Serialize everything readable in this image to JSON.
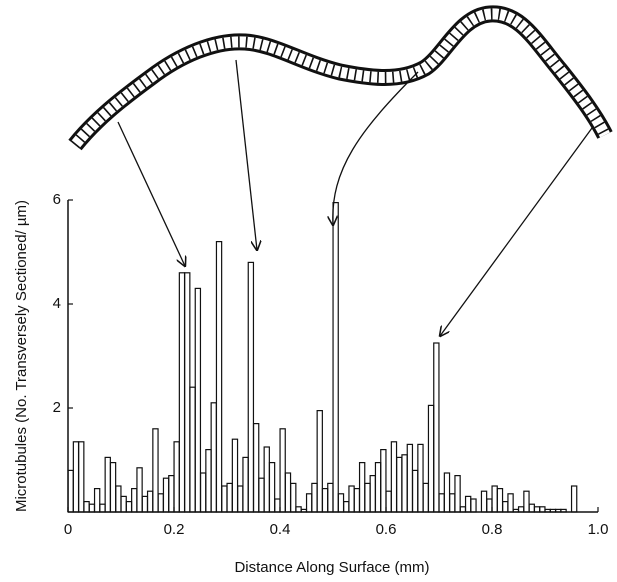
{
  "chart_data": {
    "type": "bar",
    "x_label": "Distance Along Surface (mm)",
    "y_label": "Microtubules (No. Transversely Sectioned/ µm)",
    "x": [
      0.005,
      0.015,
      0.025,
      0.035,
      0.045,
      0.055,
      0.065,
      0.075,
      0.085,
      0.095,
      0.105,
      0.115,
      0.125,
      0.135,
      0.145,
      0.155,
      0.165,
      0.175,
      0.185,
      0.195,
      0.205,
      0.215,
      0.225,
      0.235,
      0.245,
      0.255,
      0.265,
      0.275,
      0.285,
      0.295,
      0.305,
      0.315,
      0.325,
      0.335,
      0.345,
      0.355,
      0.365,
      0.375,
      0.385,
      0.395,
      0.405,
      0.415,
      0.425,
      0.435,
      0.445,
      0.455,
      0.465,
      0.475,
      0.485,
      0.495,
      0.505,
      0.515,
      0.525,
      0.535,
      0.545,
      0.555,
      0.565,
      0.575,
      0.585,
      0.595,
      0.605,
      0.615,
      0.625,
      0.635,
      0.645,
      0.655,
      0.665,
      0.675,
      0.685,
      0.695,
      0.705,
      0.715,
      0.725,
      0.735,
      0.745,
      0.755,
      0.765,
      0.785,
      0.795,
      0.805,
      0.815,
      0.825,
      0.835,
      0.845,
      0.855,
      0.865,
      0.875,
      0.885,
      0.895,
      0.905,
      0.915,
      0.925,
      0.935,
      0.955
    ],
    "values": [
      0.8,
      1.35,
      1.35,
      0.2,
      0.15,
      0.45,
      0.15,
      1.05,
      0.95,
      0.5,
      0.3,
      0.2,
      0.45,
      0.85,
      0.3,
      0.4,
      1.6,
      0.35,
      0.65,
      0.7,
      1.35,
      4.6,
      4.6,
      2.4,
      4.3,
      0.75,
      1.2,
      2.1,
      5.2,
      0.5,
      0.55,
      1.4,
      0.5,
      1.05,
      4.8,
      1.7,
      0.65,
      1.25,
      0.95,
      0.25,
      1.6,
      0.75,
      0.55,
      0.1,
      0.05,
      0.35,
      0.55,
      1.95,
      0.45,
      0.55,
      5.95,
      0.35,
      0.2,
      0.5,
      0.45,
      0.95,
      0.55,
      0.7,
      0.95,
      1.2,
      0.4,
      1.35,
      1.05,
      1.1,
      1.3,
      0.8,
      1.3,
      0.55,
      2.05,
      3.25,
      0.35,
      0.75,
      0.35,
      0.7,
      0.1,
      0.3,
      0.25,
      0.4,
      0.25,
      0.5,
      0.45,
      0.2,
      0.35,
      0.05,
      0.1,
      0.4,
      0.15,
      0.1,
      0.1,
      0.05,
      0.05,
      0.05,
      0.05,
      0.5
    ],
    "color": "#111111",
    "xlim": [
      0,
      1
    ],
    "xticks": [
      0,
      0.2,
      0.4,
      0.6,
      0.8,
      {
        "value": 1,
        "label": "1.0"
      }
    ],
    "ylim": [
      0,
      6
    ],
    "yticks": [
      2,
      4,
      6
    ]
  }
}
